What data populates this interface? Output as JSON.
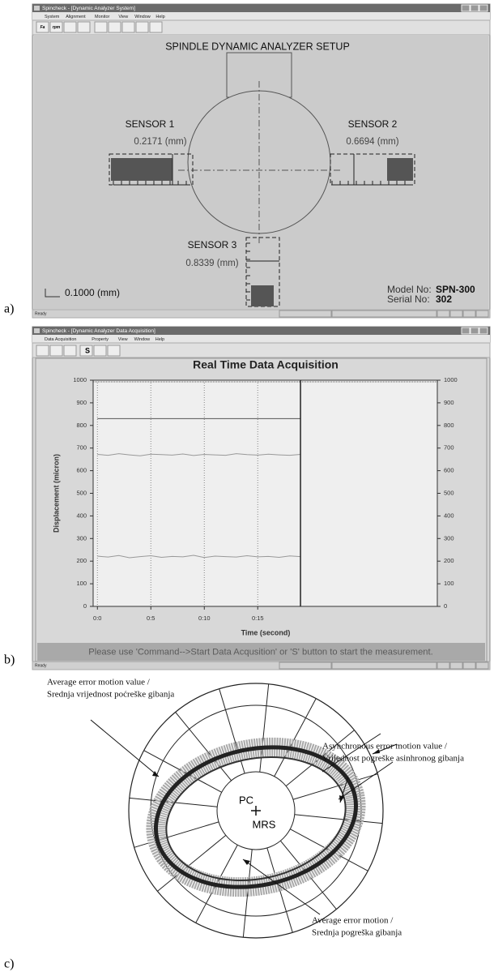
{
  "panel_a": {
    "label": "a)",
    "window_title": "Spincheck - [Dynamic Analyzer System]",
    "menu": [
      "System",
      "Alignment",
      "Monitor",
      "View",
      "Window",
      "Help"
    ],
    "toolbar": [
      "Fa",
      "rpm"
    ],
    "heading": "SPINDLE DYNAMIC ANALYZER SETUP",
    "sensors": [
      {
        "name": "SENSOR 1",
        "reading": "0.2171 (mm)"
      },
      {
        "name": "SENSOR 2",
        "reading": "0.6694 (mm)"
      },
      {
        "name": "SENSOR 3",
        "reading": "0.8339 (mm)"
      }
    ],
    "scale": "0.1000 (mm)",
    "model_label": "Model No:",
    "model": "SPN-300",
    "serial_label": "Serial No:",
    "serial": "302",
    "status": "Ready"
  },
  "panel_b": {
    "label": "b)",
    "window_title": "Spincheck - [Dynamic Analyzer Data Acquisition]",
    "menu": [
      "Data Acquisition",
      "Property",
      "View",
      "Window",
      "Help"
    ],
    "toolbar": [
      "S"
    ],
    "chart": {
      "type": "line",
      "title": "Real Time Data Acquisition",
      "y_label": "Displacement (micron)",
      "x_label": "Time (second)",
      "x": [
        0,
        1,
        2,
        3,
        4,
        5,
        6,
        7,
        8,
        9,
        10,
        11,
        12,
        13,
        14,
        15,
        16,
        17,
        18,
        19
      ],
      "series": [
        {
          "color": "#555555",
          "values": [
            830,
            830,
            830,
            830,
            830,
            830,
            830,
            830,
            830,
            830,
            830,
            830,
            830,
            830,
            830,
            830,
            830,
            830,
            830,
            830
          ]
        },
        {
          "color": "#999999",
          "values": [
            672,
            668,
            675,
            670,
            666,
            673,
            671,
            669,
            674,
            667,
            672,
            670,
            668,
            675,
            671,
            669,
            673,
            670,
            668,
            672
          ]
        },
        {
          "color": "#999999",
          "values": [
            222,
            218,
            225,
            215,
            220,
            224,
            217,
            221,
            219,
            226,
            216,
            222,
            220,
            218,
            224,
            219,
            221,
            217,
            223,
            220
          ]
        }
      ],
      "xlim": [
        -0.4,
        31.8
      ],
      "xticks": [
        {
          "value": 0,
          "label": "0:0"
        },
        {
          "value": 5,
          "label": "0:5"
        },
        {
          "value": 10,
          "label": "0:10"
        },
        {
          "value": 15,
          "label": "0:15"
        }
      ],
      "ylim": [
        0,
        1000
      ],
      "yticks": [
        0,
        100,
        200,
        300,
        400,
        500,
        600,
        700,
        800,
        900,
        1000
      ]
    },
    "message": "Please use 'Command-->Start Data Acqusition' or 'S' button to start the measurement.",
    "status": "Ready"
  },
  "panel_c": {
    "label": "c)",
    "annotations": [
      [
        "Average error motion value /",
        "Srednja vrijednost poćreške gibanja"
      ],
      [
        "Asynchronous error motion value /",
        "Vrijednost pogreške asinhronog gibanja"
      ],
      [
        "Average error motion /",
        "Srednja pogreška gibanja"
      ]
    ],
    "center_labels": [
      "PC",
      "MRS"
    ]
  }
}
